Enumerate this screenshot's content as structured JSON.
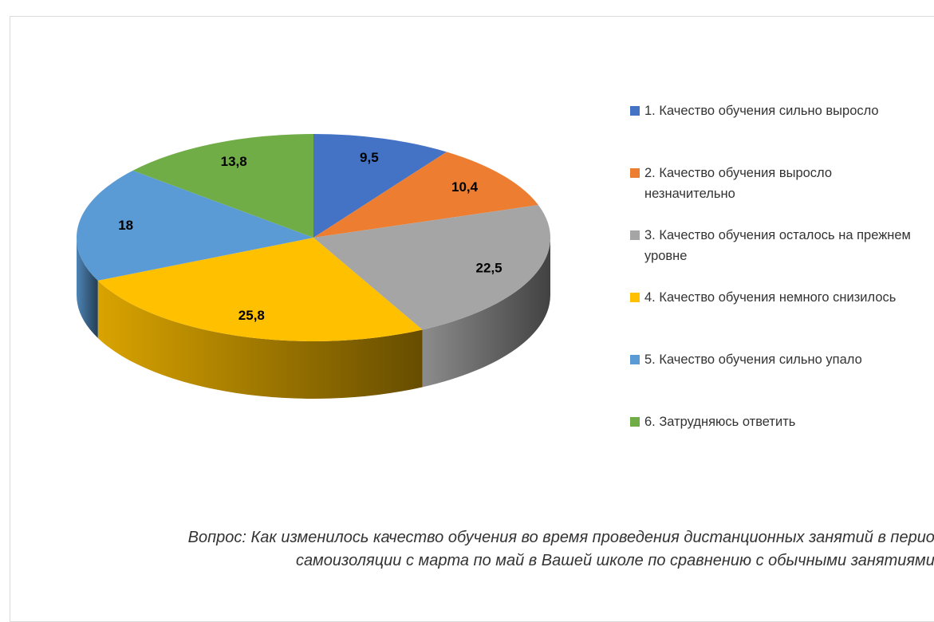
{
  "chart_data": {
    "type": "pie",
    "categories": [
      "1. Качество обучения сильно выросло",
      "2. Качество обучения выросло незначительно",
      "3. Качество обучения осталось на прежнем уровне",
      "4. Качество обучения немного снизилось",
      "5. Качество обучения сильно упало",
      "6. Затрудняюсь ответить"
    ],
    "values": [
      9.5,
      10.4,
      22.5,
      25.8,
      18,
      13.8
    ],
    "value_labels": [
      "9,5",
      "10,4",
      "22,5",
      "25,8",
      "18",
      "13,8"
    ],
    "colors": [
      "#4472c4",
      "#ed7d31",
      "#a5a5a5",
      "#ffc000",
      "#5b9bd5",
      "#70ad47"
    ],
    "legend": "right",
    "caption": "Вопрос: Как изменилось качество обучения во время проведения дистанционных занятий в период самоизоляции с марта по май в Вашей школе по сравнению с обычными занятиями?"
  }
}
